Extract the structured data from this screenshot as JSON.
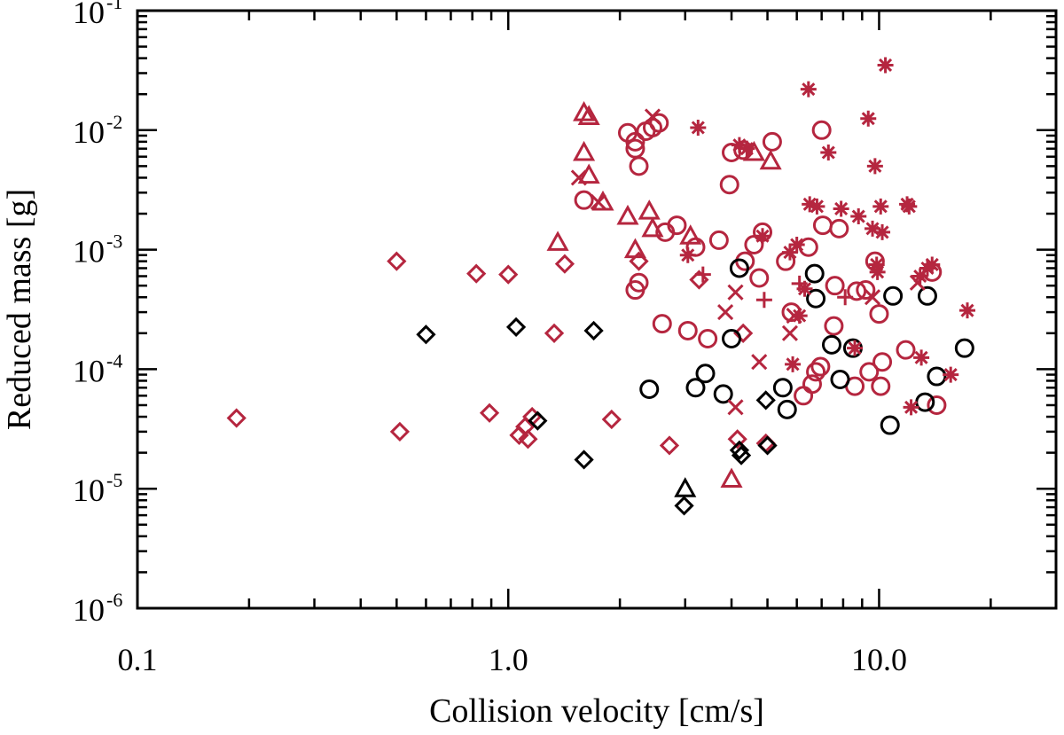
{
  "chart_data": {
    "type": "scatter",
    "title": "",
    "xlabel": "Collision velocity [cm/s]",
    "ylabel": "Reduced mass [g]",
    "x_scale": "log",
    "y_scale": "log",
    "xlim": [
      0.1,
      30
    ],
    "ylim": [
      1e-06,
      0.1
    ],
    "grid": false,
    "x_ticks": [
      {
        "value": 0.1,
        "label": "0.1"
      },
      {
        "value": 1,
        "label": "1.0"
      },
      {
        "value": 10,
        "label": "10.0"
      }
    ],
    "y_ticks": [
      {
        "value": 0.1,
        "base": "10",
        "exp": "-1"
      },
      {
        "value": 0.01,
        "base": "10",
        "exp": "-2"
      },
      {
        "value": 0.001,
        "base": "10",
        "exp": "-3"
      },
      {
        "value": 0.0001,
        "base": "10",
        "exp": "-4"
      },
      {
        "value": 1e-05,
        "base": "10",
        "exp": "-5"
      },
      {
        "value": 1e-06,
        "base": "10",
        "exp": "-6"
      }
    ],
    "colors": {
      "red": "#b5263f",
      "black": "#000000"
    },
    "series": [
      {
        "name": "red-diamond",
        "marker": "diamond",
        "color": "#b5263f",
        "points": [
          [
            0.185,
            3.9e-05
          ],
          [
            0.5,
            0.0008
          ],
          [
            0.51,
            3e-05
          ],
          [
            0.82,
            0.00063
          ],
          [
            0.89,
            4.3e-05
          ],
          [
            1.0,
            0.00062
          ],
          [
            1.07,
            2.8e-05
          ],
          [
            1.11,
            3.3e-05
          ],
          [
            1.13,
            2.6e-05
          ],
          [
            1.16,
            4e-05
          ],
          [
            1.33,
            0.0002
          ],
          [
            1.42,
            0.00076
          ],
          [
            1.9,
            3.8e-05
          ],
          [
            2.25,
            0.0008
          ],
          [
            2.72,
            2.3e-05
          ],
          [
            3.27,
            0.00056
          ],
          [
            4.15,
            2.6e-05
          ],
          [
            4.3,
            0.0002
          ],
          [
            4.95,
            2.4e-05
          ]
        ]
      },
      {
        "name": "black-diamond",
        "marker": "diamond",
        "color": "#000000",
        "points": [
          [
            0.6,
            0.000195
          ],
          [
            1.05,
            0.000225
          ],
          [
            1.2,
            3.7e-05
          ],
          [
            1.6,
            1.75e-05
          ],
          [
            1.7,
            0.00021
          ],
          [
            2.98,
            7.2e-06
          ],
          [
            4.2,
            2.1e-05
          ],
          [
            4.25,
            1.9e-05
          ],
          [
            4.95,
            5.5e-05
          ],
          [
            5.0,
            2.3e-05
          ]
        ]
      },
      {
        "name": "red-triangle",
        "marker": "triangle",
        "color": "#b5263f",
        "points": [
          [
            1.36,
            0.00115
          ],
          [
            1.6,
            0.014
          ],
          [
            1.65,
            0.013
          ],
          [
            1.6,
            0.0065
          ],
          [
            1.65,
            0.0042
          ],
          [
            1.8,
            0.0025
          ],
          [
            2.1,
            0.0019
          ],
          [
            2.2,
            0.001
          ],
          [
            2.4,
            0.0021
          ],
          [
            2.45,
            0.0015
          ],
          [
            3.1,
            0.0013
          ],
          [
            4.0,
            1.2e-05
          ],
          [
            4.6,
            0.0065
          ],
          [
            5.1,
            0.0055
          ]
        ]
      },
      {
        "name": "black-triangle",
        "marker": "triangle",
        "color": "#000000",
        "points": [
          [
            3.0,
            1e-05
          ]
        ]
      },
      {
        "name": "red-circle",
        "marker": "circle",
        "color": "#b5263f",
        "points": [
          [
            1.6,
            0.0026
          ],
          [
            2.1,
            0.0095
          ],
          [
            2.2,
            0.008
          ],
          [
            2.2,
            0.007
          ],
          [
            2.25,
            0.005
          ],
          [
            2.35,
            0.0098
          ],
          [
            2.45,
            0.0105
          ],
          [
            2.55,
            0.0115
          ],
          [
            2.2,
            0.00046
          ],
          [
            2.25,
            0.00053
          ],
          [
            2.6,
            0.00024
          ],
          [
            2.65,
            0.0014
          ],
          [
            2.85,
            0.0016
          ],
          [
            3.05,
            0.00021
          ],
          [
            3.2,
            0.00105
          ],
          [
            3.45,
            0.00018
          ],
          [
            3.7,
            0.0012
          ],
          [
            3.95,
            0.0035
          ],
          [
            4.0,
            0.0065
          ],
          [
            4.3,
            0.0068
          ],
          [
            4.35,
            0.0008
          ],
          [
            4.6,
            0.0011
          ],
          [
            4.75,
            0.00058
          ],
          [
            4.85,
            0.0014
          ],
          [
            5.15,
            0.008
          ],
          [
            5.6,
            0.0008
          ],
          [
            5.8,
            0.0003
          ],
          [
            6.25,
            6e-05
          ],
          [
            6.45,
            0.00105
          ],
          [
            6.6,
            7.5e-05
          ],
          [
            6.75,
            9.5e-05
          ],
          [
            6.95,
            0.000105
          ],
          [
            7.0,
            0.01
          ],
          [
            7.05,
            0.0016
          ],
          [
            7.55,
            0.00023
          ],
          [
            7.6,
            0.0005
          ],
          [
            7.8,
            0.0015
          ],
          [
            8.6,
            7.2e-05
          ],
          [
            8.7,
            0.00045
          ],
          [
            9.2,
            0.00046
          ],
          [
            9.4,
            9.5e-05
          ],
          [
            9.75,
            0.0008
          ],
          [
            10.0,
            0.00029
          ],
          [
            10.1,
            7.2e-05
          ],
          [
            10.2,
            0.000115
          ],
          [
            11.8,
            0.000145
          ],
          [
            13.9,
            0.00065
          ],
          [
            14.3,
            5e-05
          ]
        ]
      },
      {
        "name": "black-circle",
        "marker": "circle",
        "color": "#000000",
        "points": [
          [
            2.4,
            6.8e-05
          ],
          [
            3.2,
            7e-05
          ],
          [
            3.4,
            9.2e-05
          ],
          [
            3.8,
            6.2e-05
          ],
          [
            4.0,
            0.00018
          ],
          [
            4.2,
            0.0007
          ],
          [
            5.5,
            7e-05
          ],
          [
            5.65,
            4.6e-05
          ],
          [
            6.7,
            0.00063
          ],
          [
            6.75,
            0.00039
          ],
          [
            7.45,
            0.00016
          ],
          [
            7.85,
            8.2e-05
          ],
          [
            8.5,
            0.00015
          ],
          [
            10.7,
            3.4e-05
          ],
          [
            10.9,
            0.00041
          ],
          [
            13.3,
            5.3e-05
          ],
          [
            13.5,
            0.00041
          ],
          [
            14.3,
            8.7e-05
          ],
          [
            17.0,
            0.00015
          ]
        ]
      },
      {
        "name": "red-asterisk",
        "marker": "asterisk",
        "color": "#b5263f",
        "points": [
          [
            3.25,
            0.0105
          ],
          [
            3.05,
            0.0009
          ],
          [
            4.2,
            0.0075
          ],
          [
            4.4,
            0.007
          ],
          [
            4.85,
            0.0013
          ],
          [
            5.75,
            0.00095
          ],
          [
            5.85,
            0.00011
          ],
          [
            6.0,
            0.0011
          ],
          [
            6.1,
            0.00028
          ],
          [
            6.3,
            0.00047
          ],
          [
            6.45,
            0.022
          ],
          [
            6.5,
            0.0024
          ],
          [
            6.8,
            0.0023
          ],
          [
            7.3,
            0.0065
          ],
          [
            7.9,
            0.0022
          ],
          [
            8.6,
            0.00015
          ],
          [
            8.8,
            0.0019
          ],
          [
            9.35,
            0.0125
          ],
          [
            9.6,
            0.0015
          ],
          [
            9.75,
            0.005
          ],
          [
            9.85,
            0.00075
          ],
          [
            9.9,
            0.00065
          ],
          [
            10.1,
            0.0023
          ],
          [
            10.2,
            0.0014
          ],
          [
            10.4,
            0.035
          ],
          [
            11.9,
            0.0024
          ],
          [
            12.05,
            0.0023
          ],
          [
            12.2,
            4.8e-05
          ],
          [
            12.9,
            0.0006
          ],
          [
            13.0,
            0.000125
          ],
          [
            13.5,
            0.0007
          ],
          [
            13.9,
            0.00075
          ],
          [
            15.6,
            9e-05
          ],
          [
            17.3,
            0.00031
          ]
        ]
      },
      {
        "name": "red-cross",
        "marker": "x",
        "color": "#b5263f",
        "points": [
          [
            1.55,
            0.004
          ],
          [
            1.75,
            0.0025
          ],
          [
            2.45,
            0.013
          ],
          [
            3.85,
            0.0003
          ],
          [
            4.1,
            0.00044
          ],
          [
            4.1,
            4.8e-05
          ],
          [
            4.75,
            0.000115
          ],
          [
            5.75,
            0.0002
          ],
          [
            5.9,
            0.00028
          ],
          [
            9.6,
            0.0004
          ],
          [
            12.7,
            0.00053
          ]
        ]
      },
      {
        "name": "red-plus",
        "marker": "plus",
        "color": "#b5263f",
        "points": [
          [
            3.35,
            0.00062
          ],
          [
            4.9,
            0.00038
          ],
          [
            6.1,
            0.00052
          ],
          [
            8.1,
            0.0004
          ]
        ]
      }
    ]
  }
}
